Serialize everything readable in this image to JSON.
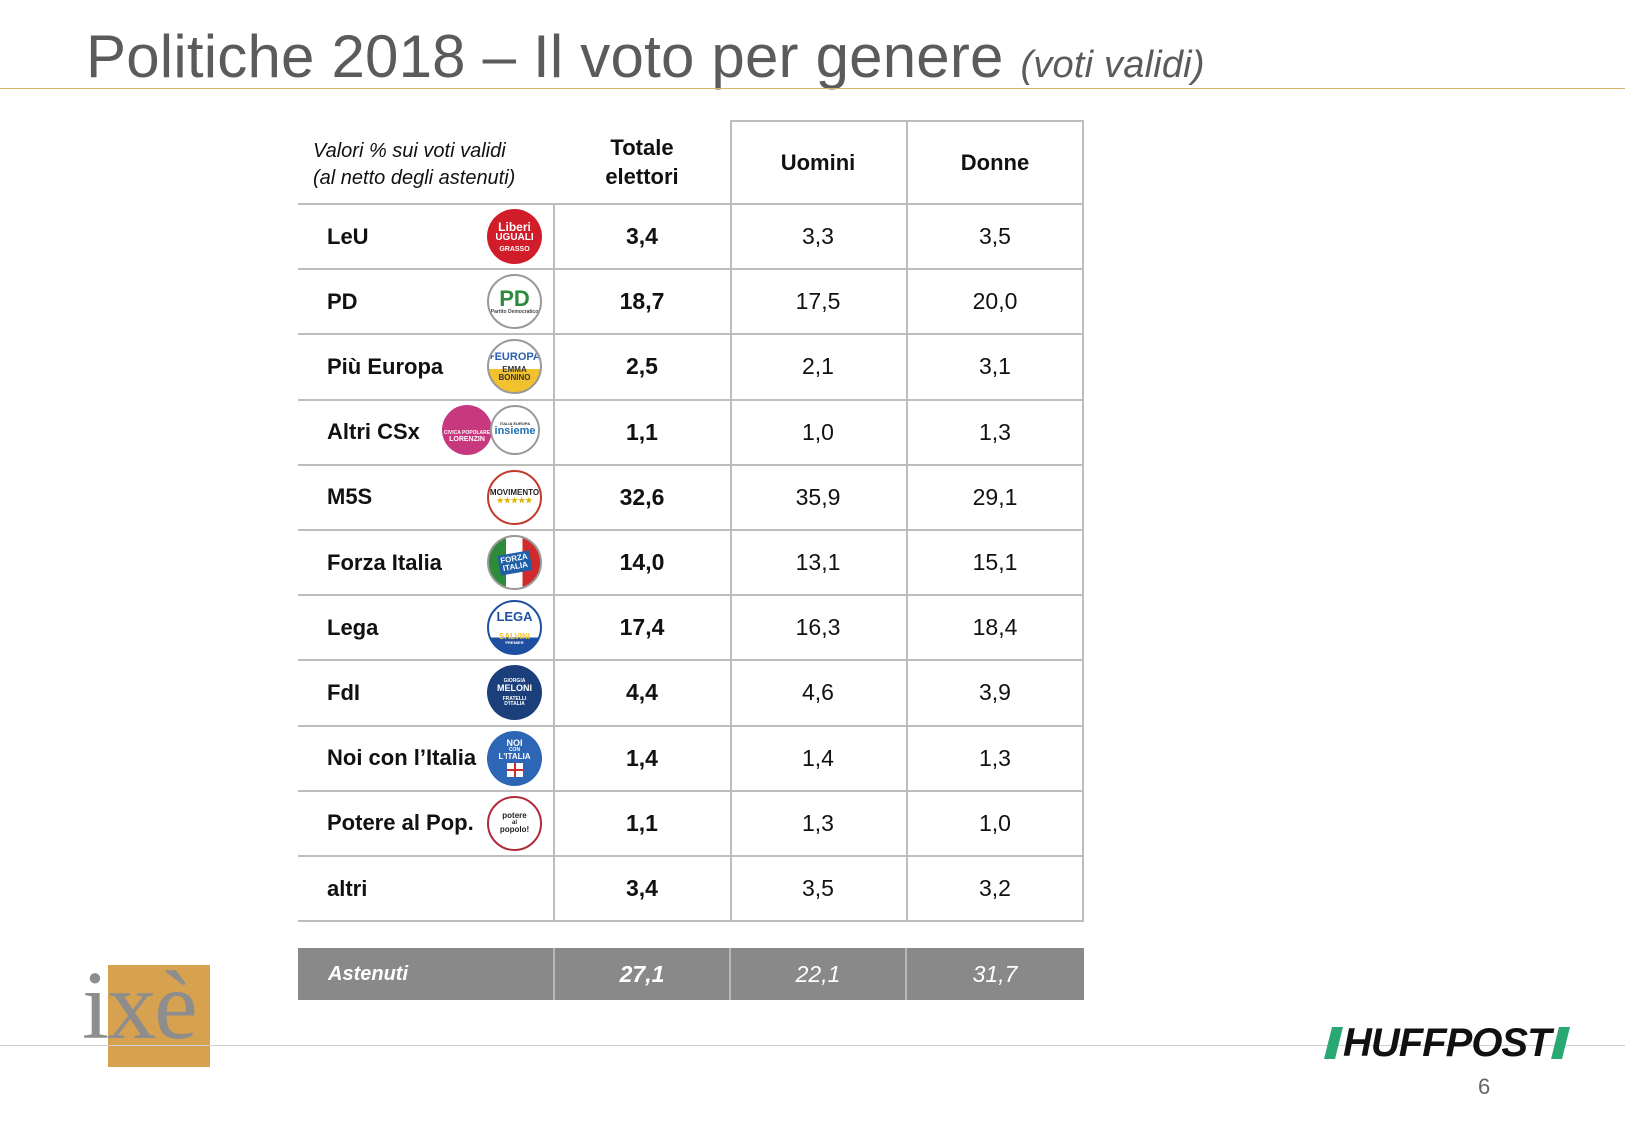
{
  "title": {
    "main": "Politiche 2018 – Il voto per genere",
    "sub": "(voti validi)"
  },
  "table": {
    "note_line1": "Valori % sui voti validi",
    "note_line2": "(al netto degli astenuti)",
    "col_totale_1": "Totale",
    "col_totale_2": "elettori",
    "col_uomini": "Uomini",
    "col_donne": "Donne",
    "rows": [
      {
        "party": "LeU",
        "logo": "liberi-uguali-logo",
        "totale": "3,4",
        "uomini": "3,3",
        "donne": "3,5"
      },
      {
        "party": "PD",
        "logo": "pd-logo",
        "totale": "18,7",
        "uomini": "17,5",
        "donne": "20,0"
      },
      {
        "party": "Più Europa",
        "logo": "piu-europa-logo",
        "totale": "2,5",
        "uomini": "2,1",
        "donne": "3,1"
      },
      {
        "party": "Altri CSx",
        "logo": "civica-insieme-logos",
        "totale": "1,1",
        "uomini": "1,0",
        "donne": "1,3"
      },
      {
        "party": "M5S",
        "logo": "movimento-5-stelle-logo",
        "totale": "32,6",
        "uomini": "35,9",
        "donne": "29,1"
      },
      {
        "party": "Forza Italia",
        "logo": "forza-italia-logo",
        "totale": "14,0",
        "uomini": "13,1",
        "donne": "15,1"
      },
      {
        "party": "Lega",
        "logo": "lega-salvini-logo",
        "totale": "17,4",
        "uomini": "16,3",
        "donne": "18,4"
      },
      {
        "party": "FdI",
        "logo": "fratelli-italia-logo",
        "totale": "4,4",
        "uomini": "4,6",
        "donne": "3,9"
      },
      {
        "party": "Noi con l’Italia",
        "logo": "noi-con-italia-logo",
        "totale": "1,4",
        "uomini": "1,4",
        "donne": "1,3"
      },
      {
        "party": "Potere al Pop.",
        "logo": "potere-al-popolo-logo",
        "totale": "1,1",
        "uomini": "1,3",
        "donne": "1,0"
      },
      {
        "party": "altri",
        "logo": "",
        "totale": "3,4",
        "uomini": "3,5",
        "donne": "3,2"
      }
    ],
    "astenuti": {
      "label": "Astenuti",
      "totale": "27,1",
      "uomini": "22,1",
      "donne": "31,7"
    }
  },
  "logos": {
    "leu": [
      "Liberi",
      "UGUALI",
      "GRASSO"
    ],
    "pd": [
      "PD",
      "Partito Democratico"
    ],
    "piu_europa": [
      "+EUROPA",
      "EMMA",
      "BONINO"
    ],
    "civica": [
      "CIVICA POPOLARE",
      "LORENZIN"
    ],
    "insieme": [
      "ITALIA EUROPA",
      "insieme"
    ],
    "m5s": [
      "MOVIMENTO",
      "★★★★★"
    ],
    "fi": [
      "FORZA",
      "ITALIA"
    ],
    "lega": [
      "LEGA",
      "SALVINI",
      "PREMIER"
    ],
    "fdi": [
      "GIORGIA",
      "MELONI",
      "FRATELLI",
      "D'ITALIA"
    ],
    "noi": [
      "NOI",
      "CON",
      "L'ITALIA"
    ],
    "pap": [
      "potere",
      "al",
      "popolo!"
    ]
  },
  "branding": {
    "ixe": "ixè",
    "huffpost": "HUFFPOST"
  },
  "page_number": "6",
  "colors": {
    "title": "#5b5b5b",
    "title_rule": "#d8b46a",
    "astenuti_bg": "#898989",
    "ixe_gold": "#d6a24f",
    "huff_green": "#2aa874",
    "grid": "#bdbdbd"
  }
}
